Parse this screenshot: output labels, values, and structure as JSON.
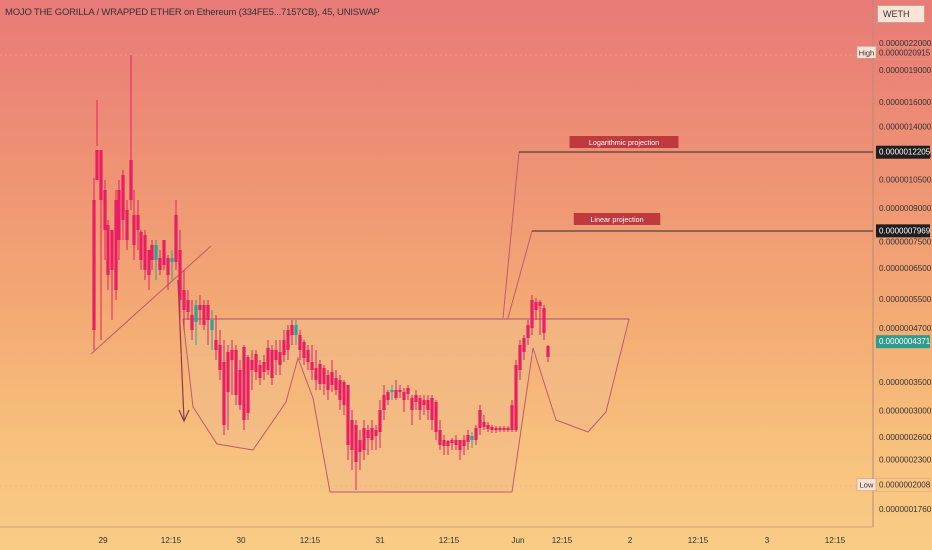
{
  "header": {
    "title": "MOJO THE GORILLA / WRAPPED ETHER on Ethereum (334FE5...7157CB), 45, UNISWAP",
    "currency": "WETH"
  },
  "chart_data": {
    "type": "candlestick",
    "y_axis": {
      "position": "right",
      "scale": "log",
      "ticks": [
        "0.0000022000",
        "0.0000019000",
        "0.0000016000",
        "0.0000014000",
        "0.0000012000",
        "0.0000010500",
        "0.0000009000",
        "0.0000007500",
        "0.0000006500",
        "0.0000005500",
        "0.0000004700",
        "0.0000003500",
        "0.0000003000",
        "0.0000002600",
        "0.0000002300",
        "0.0000001760"
      ]
    },
    "x_axis": {
      "ticks": [
        "29",
        "12:15",
        "30",
        "12:15",
        "31",
        "12:15",
        "Jun",
        "12:15",
        "2",
        "12:15",
        "3",
        "12:15"
      ]
    },
    "price_labels": [
      {
        "name": "high",
        "tag": "High",
        "value": "0.0000020915"
      },
      {
        "name": "log-projection",
        "value": "0.0000012205"
      },
      {
        "name": "linear-projection",
        "value": "0.0000007969"
      },
      {
        "name": "current",
        "value": "0.0000004371"
      },
      {
        "name": "low",
        "tag": "Low",
        "value": "0.0000002008"
      }
    ],
    "annotations": [
      "Logarithmic projection",
      "Linear projection"
    ],
    "colors": {
      "up": "#26a69a",
      "down": "#e91e63",
      "drawing": "#c05872",
      "fill": "#f0bb8a"
    }
  }
}
